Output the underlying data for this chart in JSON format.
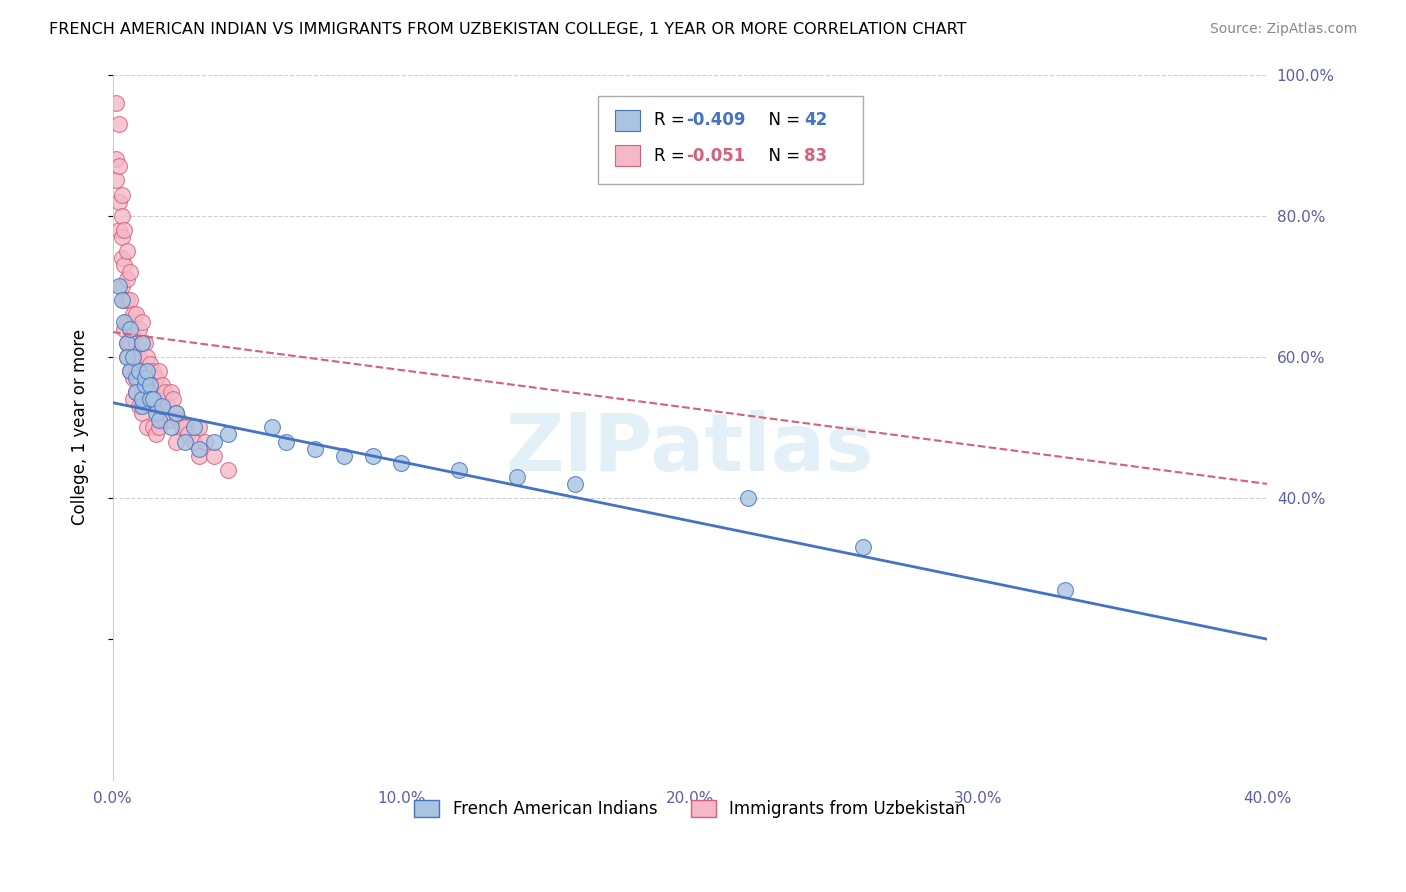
{
  "title": "FRENCH AMERICAN INDIAN VS IMMIGRANTS FROM UZBEKISTAN COLLEGE, 1 YEAR OR MORE CORRELATION CHART",
  "source": "Source: ZipAtlas.com",
  "ylabel": "College, 1 year or more",
  "xlim": [
    0.0,
    0.4
  ],
  "ylim": [
    0.0,
    1.0
  ],
  "xticklabels": [
    "0.0%",
    "10.0%",
    "20.0%",
    "30.0%",
    "40.0%"
  ],
  "xticks": [
    0.0,
    0.1,
    0.2,
    0.3,
    0.4
  ],
  "yticklabels_right": [
    "100.0%",
    "80.0%",
    "60.0%",
    "40.0%"
  ],
  "yticks_right": [
    1.0,
    0.8,
    0.6,
    0.4
  ],
  "legend_blue_label": "French American Indians",
  "legend_pink_label": "Immigrants from Uzbekistan",
  "blue_R": "-0.409",
  "blue_N": "42",
  "pink_R": "-0.051",
  "pink_N": "83",
  "blue_fill": "#a8c4e0",
  "blue_edge": "#4472c4",
  "pink_fill": "#f4b8c8",
  "pink_edge": "#d4607a",
  "watermark": "ZIPatlas",
  "blue_scatter_x": [
    0.002,
    0.003,
    0.004,
    0.005,
    0.005,
    0.006,
    0.006,
    0.007,
    0.008,
    0.008,
    0.009,
    0.01,
    0.01,
    0.01,
    0.011,
    0.011,
    0.012,
    0.013,
    0.013,
    0.014,
    0.015,
    0.016,
    0.017,
    0.02,
    0.022,
    0.025,
    0.028,
    0.03,
    0.035,
    0.04,
    0.055,
    0.06,
    0.07,
    0.08,
    0.09,
    0.1,
    0.12,
    0.14,
    0.16,
    0.22,
    0.26,
    0.33
  ],
  "blue_scatter_y": [
    0.7,
    0.68,
    0.65,
    0.62,
    0.6,
    0.58,
    0.64,
    0.6,
    0.57,
    0.55,
    0.58,
    0.53,
    0.62,
    0.54,
    0.56,
    0.57,
    0.58,
    0.56,
    0.54,
    0.54,
    0.52,
    0.51,
    0.53,
    0.5,
    0.52,
    0.48,
    0.5,
    0.47,
    0.48,
    0.49,
    0.5,
    0.48,
    0.47,
    0.46,
    0.46,
    0.45,
    0.44,
    0.43,
    0.42,
    0.4,
    0.33,
    0.27
  ],
  "pink_scatter_x": [
    0.001,
    0.001,
    0.001,
    0.002,
    0.002,
    0.002,
    0.002,
    0.003,
    0.003,
    0.003,
    0.003,
    0.003,
    0.004,
    0.004,
    0.004,
    0.004,
    0.005,
    0.005,
    0.005,
    0.005,
    0.005,
    0.005,
    0.006,
    0.006,
    0.006,
    0.006,
    0.006,
    0.007,
    0.007,
    0.007,
    0.007,
    0.007,
    0.008,
    0.008,
    0.008,
    0.008,
    0.009,
    0.009,
    0.009,
    0.009,
    0.01,
    0.01,
    0.01,
    0.01,
    0.01,
    0.011,
    0.011,
    0.011,
    0.012,
    0.012,
    0.012,
    0.012,
    0.013,
    0.013,
    0.014,
    0.014,
    0.014,
    0.015,
    0.015,
    0.015,
    0.016,
    0.016,
    0.016,
    0.017,
    0.017,
    0.018,
    0.018,
    0.019,
    0.02,
    0.02,
    0.021,
    0.022,
    0.022,
    0.023,
    0.024,
    0.025,
    0.026,
    0.028,
    0.03,
    0.03,
    0.032,
    0.035,
    0.04
  ],
  "pink_scatter_y": [
    0.96,
    0.88,
    0.85,
    0.93,
    0.87,
    0.82,
    0.78,
    0.83,
    0.8,
    0.77,
    0.74,
    0.7,
    0.78,
    0.73,
    0.68,
    0.64,
    0.75,
    0.71,
    0.68,
    0.65,
    0.62,
    0.6,
    0.72,
    0.68,
    0.65,
    0.62,
    0.58,
    0.66,
    0.63,
    0.6,
    0.57,
    0.54,
    0.66,
    0.62,
    0.58,
    0.55,
    0.64,
    0.6,
    0.57,
    0.53,
    0.65,
    0.62,
    0.58,
    0.55,
    0.52,
    0.62,
    0.58,
    0.54,
    0.6,
    0.57,
    0.54,
    0.5,
    0.59,
    0.55,
    0.58,
    0.54,
    0.5,
    0.57,
    0.53,
    0.49,
    0.58,
    0.54,
    0.5,
    0.56,
    0.52,
    0.55,
    0.51,
    0.53,
    0.55,
    0.51,
    0.54,
    0.52,
    0.48,
    0.51,
    0.5,
    0.5,
    0.49,
    0.48,
    0.5,
    0.46,
    0.48,
    0.46,
    0.44
  ],
  "blue_trendline_x": [
    0.0,
    0.4
  ],
  "blue_trendline_y": [
    0.535,
    0.2
  ],
  "pink_trendline_x": [
    0.0,
    0.4
  ],
  "pink_trendline_y": [
    0.635,
    0.42
  ]
}
